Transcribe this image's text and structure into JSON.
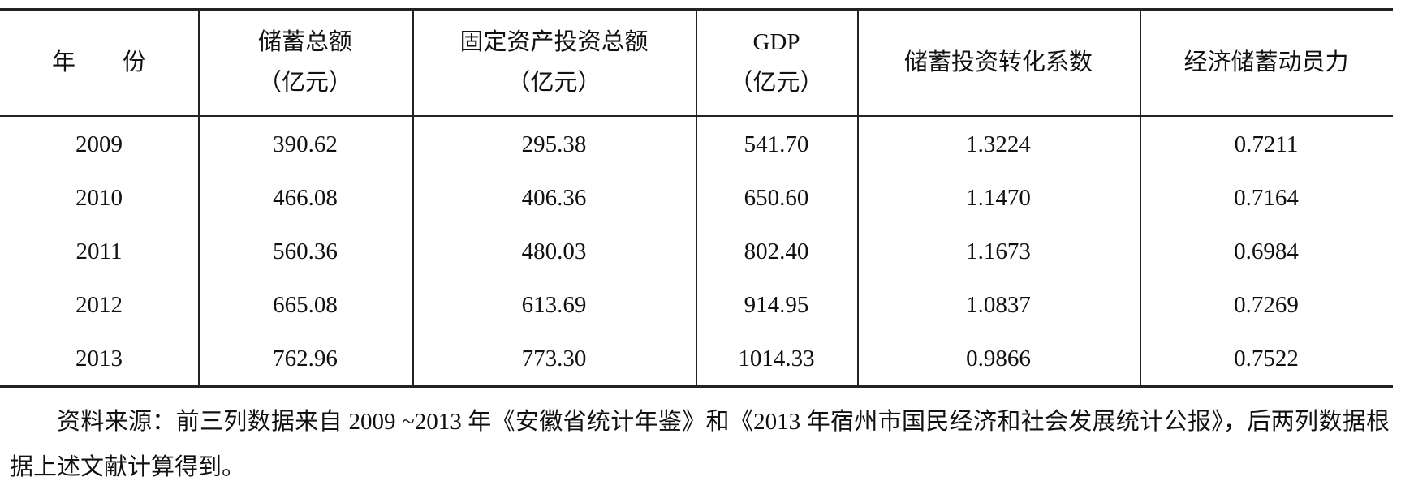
{
  "table": {
    "header": [
      [
        "年　　份"
      ],
      [
        "储蓄总额",
        "（亿元）"
      ],
      [
        "固定资产投资总额",
        "（亿元）"
      ],
      [
        "GDP",
        "（亿元）"
      ],
      [
        "储蓄投资转化系数"
      ],
      [
        "经济储蓄动员力"
      ]
    ],
    "rows": [
      [
        "2009",
        "390.62",
        "295.38",
        "541.70",
        "1.3224",
        "0.7211"
      ],
      [
        "2010",
        "466.08",
        "406.36",
        "650.60",
        "1.1470",
        "0.7164"
      ],
      [
        "2011",
        "560.36",
        "480.03",
        "802.40",
        "1.1673",
        "0.6984"
      ],
      [
        "2012",
        "665.08",
        "613.69",
        "914.95",
        "1.0837",
        "0.7269"
      ],
      [
        "2013",
        "762.96",
        "773.30",
        "1014.33",
        "0.9866",
        "0.7522"
      ]
    ]
  },
  "note": "资料来源：前三列数据来自 2009 ~2013 年《安徽省统计年鉴》和《2013 年宿州市国民经济和社会发展统计公报》，后两列数据根据上述文献计算得到。"
}
